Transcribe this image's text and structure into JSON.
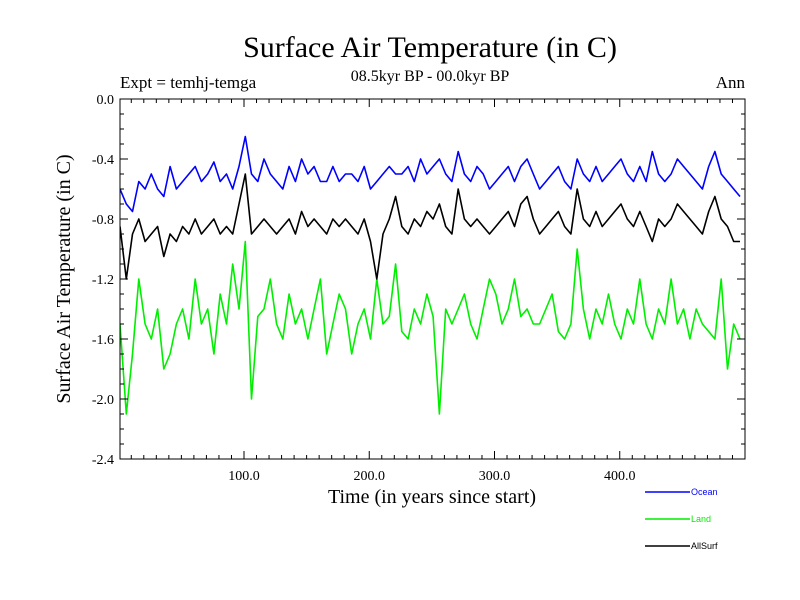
{
  "chart_data": {
    "type": "line",
    "title": "Surface Air Temperature (in C)",
    "subtitle": "08.5kyr BP - 00.0kyr BP",
    "experiment_label": "Expt = temhj-temga",
    "season_label": "Ann",
    "xlabel": "Time (in years since start)",
    "ylabel": "Surface Air Temperature (in C)",
    "xlim": [
      1,
      500
    ],
    "ylim": [
      -2.4,
      0.0
    ],
    "x_ticks": [
      100,
      200,
      300,
      400
    ],
    "x_tick_labels": [
      "100.0",
      "200.0",
      "300.0",
      "400.0"
    ],
    "y_ticks": [
      0.0,
      -0.4,
      -0.8,
      -1.2,
      -1.6,
      -2.0,
      -2.4
    ],
    "y_tick_labels": [
      "0.0",
      "-0.4",
      "-0.8",
      "-1.2",
      "-1.6",
      "-2.0",
      "-2.4"
    ],
    "legend_position": "bottom-right",
    "series": [
      {
        "name": "Ocean",
        "color": "#0000ff",
        "x_step": 5,
        "values": [
          -0.6,
          -0.7,
          -0.75,
          -0.55,
          -0.6,
          -0.5,
          -0.6,
          -0.65,
          -0.45,
          -0.6,
          -0.55,
          -0.5,
          -0.45,
          -0.55,
          -0.5,
          -0.42,
          -0.55,
          -0.5,
          -0.6,
          -0.45,
          -0.25,
          -0.5,
          -0.55,
          -0.4,
          -0.5,
          -0.55,
          -0.6,
          -0.45,
          -0.55,
          -0.4,
          -0.5,
          -0.45,
          -0.55,
          -0.55,
          -0.45,
          -0.55,
          -0.5,
          -0.5,
          -0.55,
          -0.45,
          -0.6,
          -0.55,
          -0.5,
          -0.45,
          -0.5,
          -0.5,
          -0.45,
          -0.55,
          -0.4,
          -0.5,
          -0.45,
          -0.4,
          -0.5,
          -0.55,
          -0.35,
          -0.5,
          -0.55,
          -0.45,
          -0.5,
          -0.6,
          -0.55,
          -0.5,
          -0.45,
          -0.55,
          -0.45,
          -0.4,
          -0.5,
          -0.6,
          -0.55,
          -0.5,
          -0.45,
          -0.55,
          -0.6,
          -0.4,
          -0.5,
          -0.55,
          -0.45,
          -0.55,
          -0.5,
          -0.45,
          -0.4,
          -0.5,
          -0.55,
          -0.45,
          -0.55,
          -0.35,
          -0.5,
          -0.55,
          -0.5,
          -0.4,
          -0.45,
          -0.5,
          -0.55,
          -0.6,
          -0.45,
          -0.35,
          -0.5,
          -0.55,
          -0.6,
          -0.65
        ]
      },
      {
        "name": "Land",
        "color": "#00ee00",
        "x_step": 5,
        "values": [
          -1.5,
          -2.1,
          -1.7,
          -1.2,
          -1.5,
          -1.6,
          -1.4,
          -1.8,
          -1.7,
          -1.5,
          -1.4,
          -1.6,
          -1.2,
          -1.5,
          -1.4,
          -1.7,
          -1.3,
          -1.5,
          -1.1,
          -1.4,
          -0.95,
          -2.0,
          -1.45,
          -1.4,
          -1.2,
          -1.5,
          -1.6,
          -1.3,
          -1.5,
          -1.4,
          -1.6,
          -1.4,
          -1.2,
          -1.7,
          -1.5,
          -1.3,
          -1.4,
          -1.7,
          -1.5,
          -1.4,
          -1.6,
          -1.2,
          -1.5,
          -1.45,
          -1.1,
          -1.55,
          -1.6,
          -1.4,
          -1.5,
          -1.3,
          -1.45,
          -2.1,
          -1.4,
          -1.5,
          -1.4,
          -1.3,
          -1.5,
          -1.6,
          -1.4,
          -1.2,
          -1.3,
          -1.5,
          -1.4,
          -1.2,
          -1.45,
          -1.4,
          -1.5,
          -1.5,
          -1.4,
          -1.3,
          -1.55,
          -1.6,
          -1.5,
          -1.0,
          -1.4,
          -1.6,
          -1.4,
          -1.5,
          -1.3,
          -1.5,
          -1.6,
          -1.4,
          -1.5,
          -1.2,
          -1.5,
          -1.6,
          -1.4,
          -1.5,
          -1.2,
          -1.5,
          -1.4,
          -1.6,
          -1.4,
          -1.5,
          -1.55,
          -1.6,
          -1.2,
          -1.8,
          -1.5,
          -1.6
        ]
      },
      {
        "name": "AllSurf",
        "color": "#000000",
        "x_step": 5,
        "values": [
          -0.85,
          -1.2,
          -0.9,
          -0.8,
          -0.95,
          -0.9,
          -0.85,
          -1.05,
          -0.9,
          -0.95,
          -0.85,
          -0.9,
          -0.8,
          -0.9,
          -0.85,
          -0.8,
          -0.9,
          -0.85,
          -0.9,
          -0.7,
          -0.5,
          -0.9,
          -0.85,
          -0.8,
          -0.85,
          -0.9,
          -0.85,
          -0.8,
          -0.9,
          -0.75,
          -0.85,
          -0.8,
          -0.85,
          -0.9,
          -0.8,
          -0.85,
          -0.8,
          -0.85,
          -0.9,
          -0.8,
          -0.95,
          -1.2,
          -0.9,
          -0.8,
          -0.65,
          -0.85,
          -0.9,
          -0.8,
          -0.85,
          -0.75,
          -0.8,
          -0.7,
          -0.85,
          -0.9,
          -0.6,
          -0.8,
          -0.85,
          -0.8,
          -0.85,
          -0.9,
          -0.85,
          -0.8,
          -0.75,
          -0.85,
          -0.7,
          -0.65,
          -0.8,
          -0.9,
          -0.85,
          -0.8,
          -0.75,
          -0.85,
          -0.9,
          -0.6,
          -0.8,
          -0.85,
          -0.75,
          -0.85,
          -0.8,
          -0.75,
          -0.7,
          -0.8,
          -0.85,
          -0.75,
          -0.85,
          -0.95,
          -0.8,
          -0.85,
          -0.8,
          -0.7,
          -0.75,
          -0.8,
          -0.85,
          -0.9,
          -0.75,
          -0.65,
          -0.8,
          -0.85,
          -0.95,
          -0.95
        ]
      }
    ]
  }
}
